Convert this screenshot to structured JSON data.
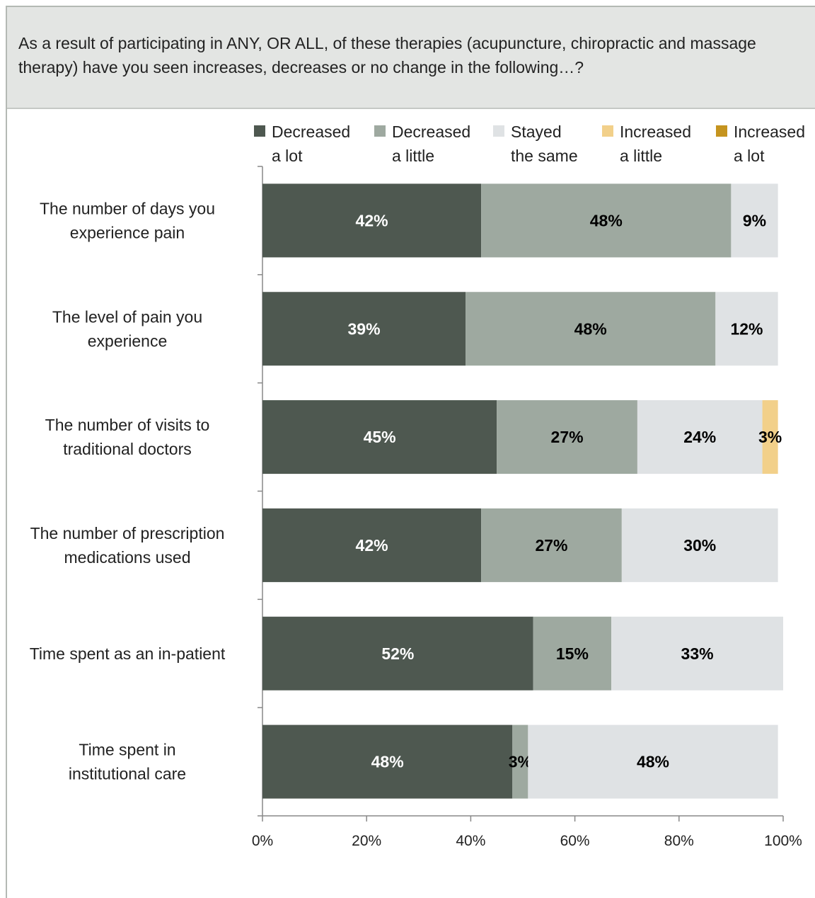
{
  "question": "As a result of participating in ANY, OR ALL, of these therapies (acupuncture, chiropractic and massage therapy) have you seen increases, decreases or no change in the following…?",
  "chart_data": {
    "type": "bar",
    "orientation": "horizontal",
    "stacked": true,
    "categories": [
      [
        "The number of days you",
        "experience pain"
      ],
      [
        "The level of pain you",
        "experience"
      ],
      [
        "The number of visits to",
        "traditional doctors"
      ],
      [
        "The number of prescription",
        "medications used"
      ],
      [
        "Time spent as an in-patient"
      ],
      [
        "Time spent in",
        "institutional care"
      ]
    ],
    "series": [
      {
        "name": [
          "Decreased",
          "a lot"
        ],
        "color": "#4e5850",
        "label_color": "#ffffff",
        "values": [
          42,
          39,
          45,
          42,
          52,
          48
        ]
      },
      {
        "name": [
          "Decreased",
          "a little"
        ],
        "color": "#9ea9a0",
        "label_color": "#000000",
        "values": [
          48,
          48,
          27,
          27,
          15,
          3
        ]
      },
      {
        "name": [
          "Stayed",
          "the same"
        ],
        "color": "#dfe2e4",
        "label_color": "#000000",
        "values": [
          9,
          12,
          24,
          30,
          33,
          48
        ]
      },
      {
        "name": [
          "Increased",
          "a little"
        ],
        "color": "#f2d08a",
        "label_color": "#000000",
        "values": [
          0,
          0,
          3,
          0,
          0,
          0
        ]
      },
      {
        "name": [
          "Increased",
          "a lot"
        ],
        "color": "#c5941f",
        "label_color": "#000000",
        "values": [
          0,
          0,
          0,
          0,
          0,
          0
        ]
      }
    ],
    "value_suffix": "%",
    "xlim": [
      0,
      100
    ],
    "xticks": [
      "0%",
      "20%",
      "40%",
      "60%",
      "80%",
      "100%"
    ],
    "legend_position": "top",
    "grid": false
  }
}
